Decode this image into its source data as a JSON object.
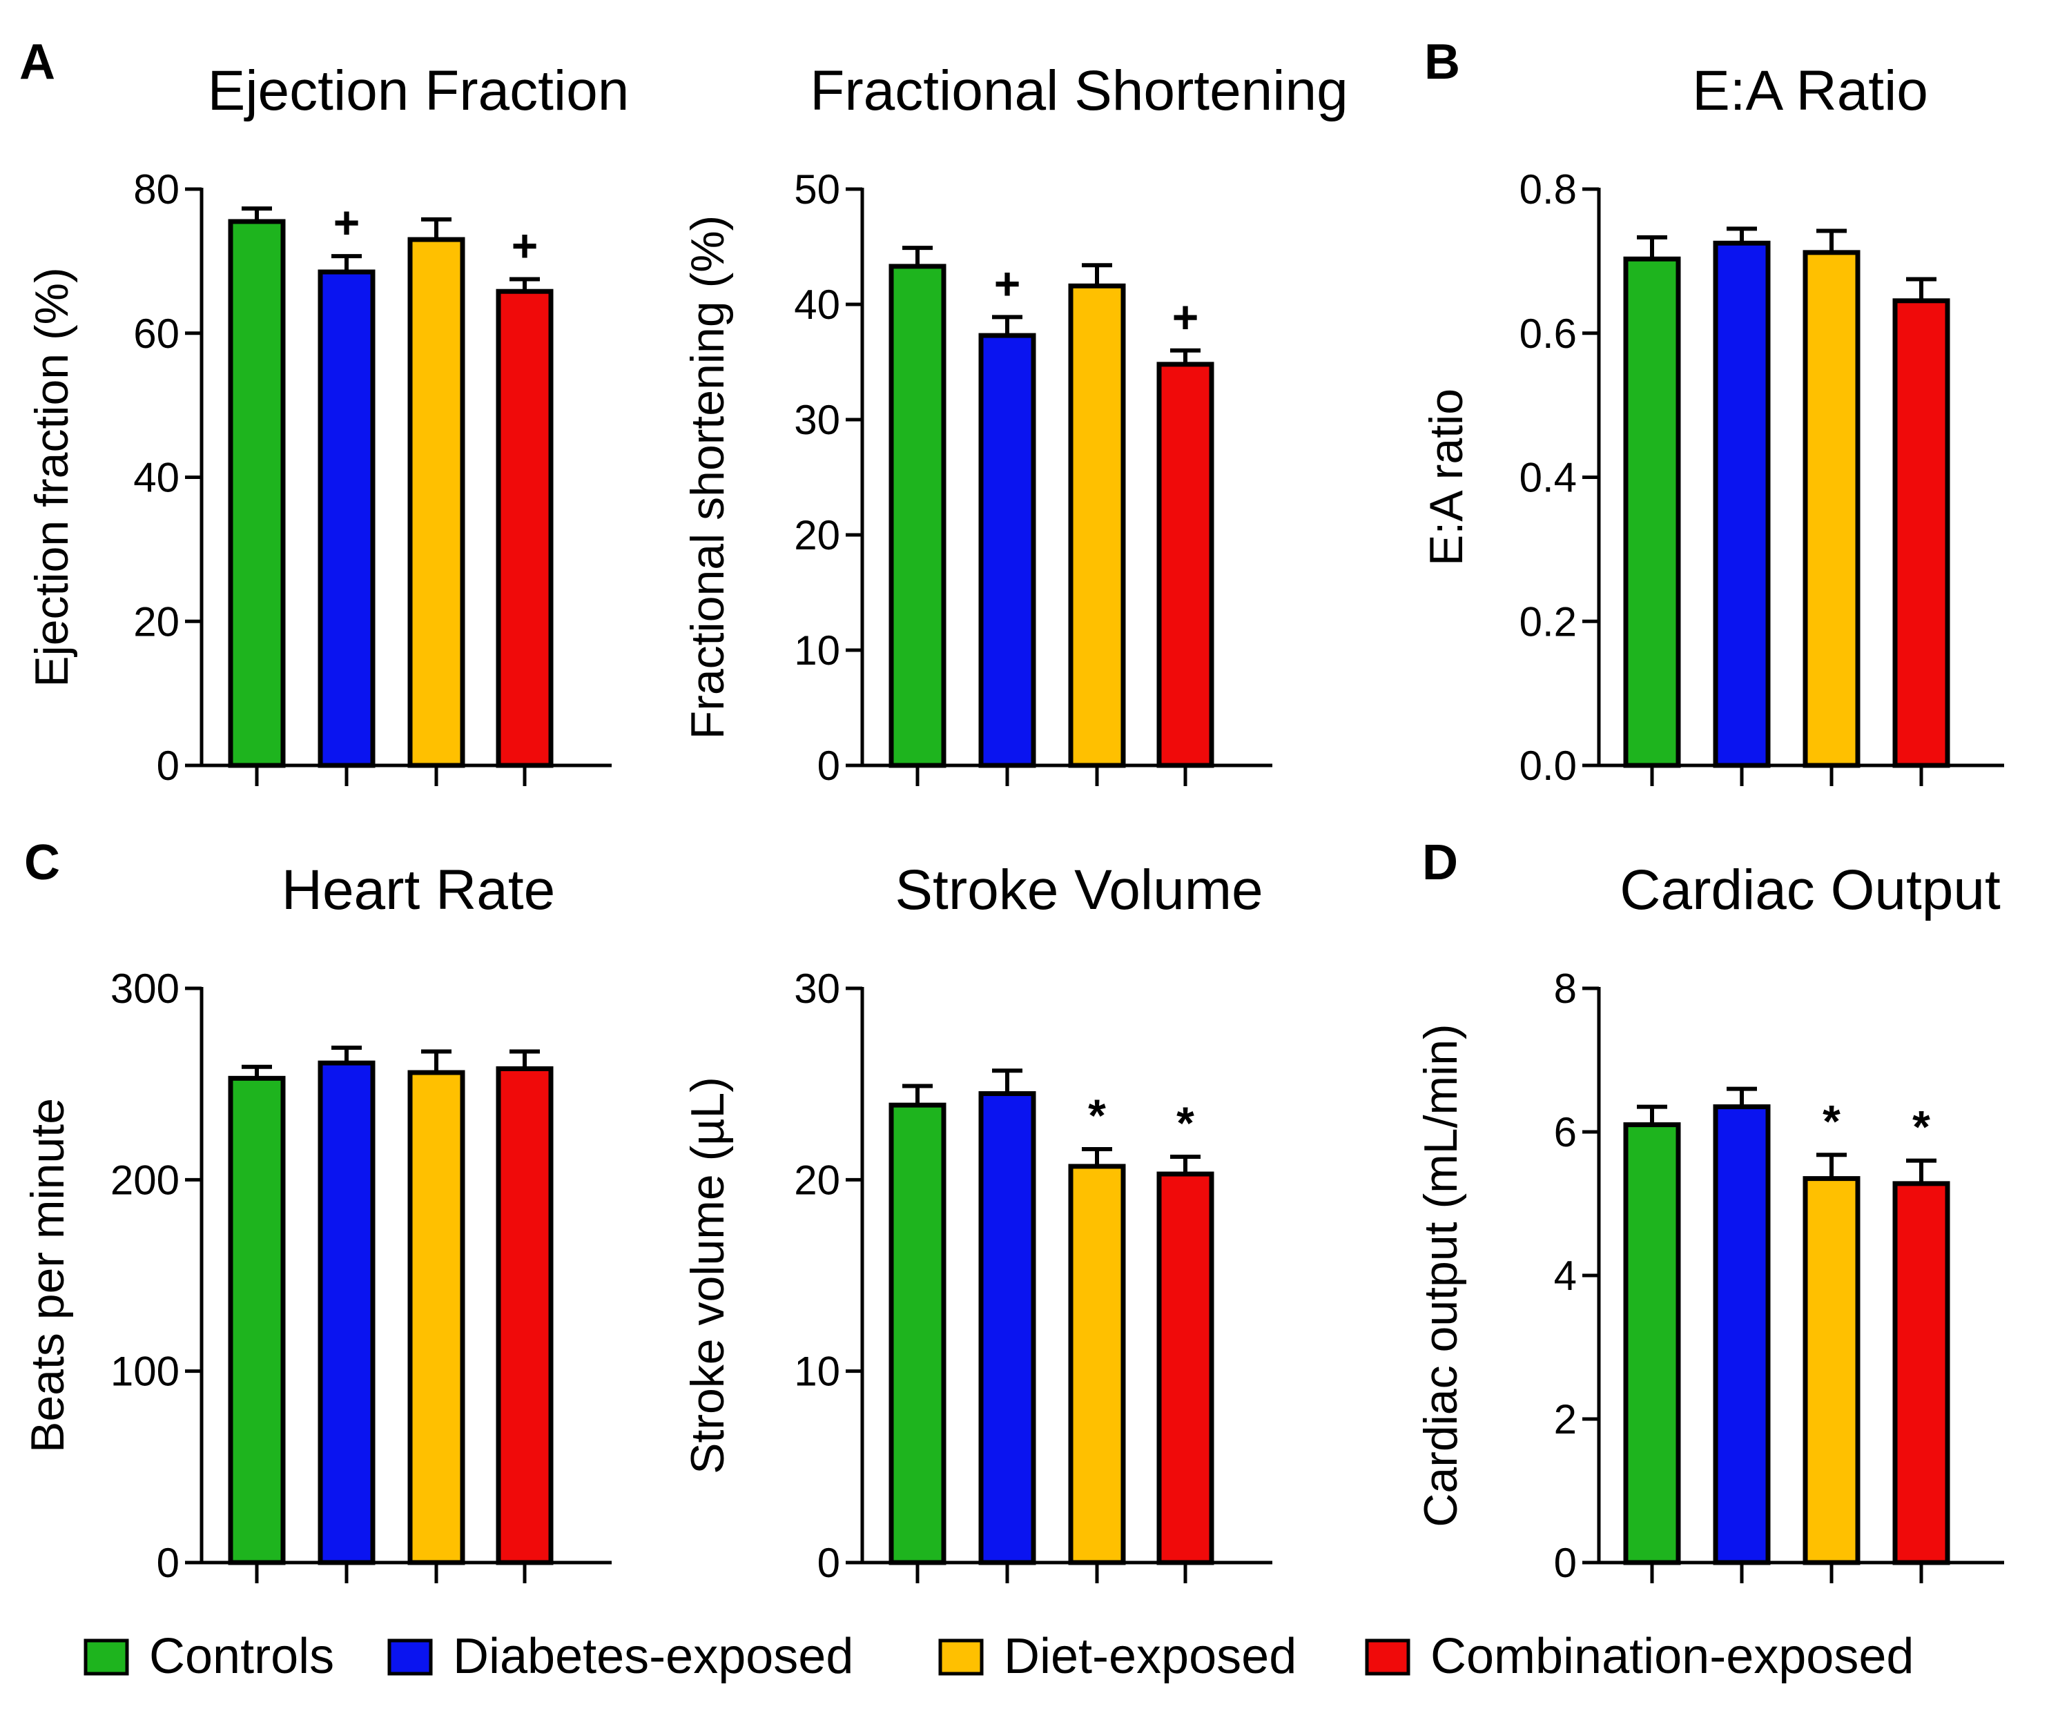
{
  "figure": {
    "legend": [
      {
        "label": "Controls",
        "color": "#1EB41E"
      },
      {
        "label": "Diabetes-exposed",
        "color": "#0A14F0"
      },
      {
        "label": "Diet-exposed",
        "color": "#FFC000"
      },
      {
        "label": "Combination-exposed",
        "color": "#F00A0A"
      }
    ]
  },
  "chart_data": [
    {
      "type": "bar",
      "panel": "A",
      "title": "Ejection Fraction",
      "xlabel": "",
      "ylabel": "Ejection fraction (%)",
      "categories": [
        "Controls",
        "Diabetes-exposed",
        "Diet-exposed",
        "Combination-exposed"
      ],
      "colors": [
        "#1EB41E",
        "#0A14F0",
        "#FFC000",
        "#F00A0A"
      ],
      "values": [
        75.5,
        68.5,
        73.0,
        65.8
      ],
      "errors": [
        1.8,
        2.2,
        2.8,
        1.7
      ],
      "annotations": [
        "",
        "+",
        "",
        "+"
      ],
      "ylim": [
        0,
        80
      ],
      "yticks": [
        0,
        20,
        40,
        60,
        80
      ],
      "ytick_labels": [
        "0",
        "20",
        "40",
        "60",
        "80"
      ]
    },
    {
      "type": "bar",
      "panel": "",
      "title": "Fractional Shortening",
      "xlabel": "",
      "ylabel": "Fractional shortening (%)",
      "categories": [
        "Controls",
        "Diabetes-exposed",
        "Diet-exposed",
        "Combination-exposed"
      ],
      "colors": [
        "#1EB41E",
        "#0A14F0",
        "#FFC000",
        "#F00A0A"
      ],
      "values": [
        43.3,
        37.3,
        41.6,
        34.8
      ],
      "errors": [
        1.6,
        1.6,
        1.8,
        1.2
      ],
      "annotations": [
        "",
        "+",
        "",
        "+"
      ],
      "ylim": [
        0,
        50
      ],
      "yticks": [
        0,
        10,
        20,
        30,
        40,
        50
      ],
      "ytick_labels": [
        "0",
        "10",
        "20",
        "30",
        "40",
        "50"
      ]
    },
    {
      "type": "bar",
      "panel": "B",
      "title": "E:A Ratio",
      "xlabel": "",
      "ylabel": "E:A ratio",
      "categories": [
        "Controls",
        "Diabetes-exposed",
        "Diet-exposed",
        "Combination-exposed"
      ],
      "colors": [
        "#1EB41E",
        "#0A14F0",
        "#FFC000",
        "#F00A0A"
      ],
      "values": [
        0.703,
        0.725,
        0.712,
        0.645
      ],
      "errors": [
        0.03,
        0.02,
        0.03,
        0.03
      ],
      "annotations": [
        "",
        "",
        "",
        ""
      ],
      "ylim": [
        0,
        0.8
      ],
      "yticks": [
        0,
        0.2,
        0.4,
        0.6,
        0.8
      ],
      "ytick_labels": [
        "0.0",
        "0.2",
        "0.4",
        "0.6",
        "0.8"
      ]
    },
    {
      "type": "bar",
      "panel": "C",
      "title": "Heart Rate",
      "xlabel": "",
      "ylabel": "Beats per minute",
      "categories": [
        "Controls",
        "Diabetes-exposed",
        "Diet-exposed",
        "Combination-exposed"
      ],
      "colors": [
        "#1EB41E",
        "#0A14F0",
        "#FFC000",
        "#F00A0A"
      ],
      "values": [
        253,
        261,
        256,
        258
      ],
      "errors": [
        6,
        8,
        11,
        9
      ],
      "annotations": [
        "",
        "",
        "",
        ""
      ],
      "ylim": [
        0,
        300
      ],
      "yticks": [
        0,
        100,
        200,
        300
      ],
      "ytick_labels": [
        "0",
        "100",
        "200",
        "300"
      ]
    },
    {
      "type": "bar",
      "panel": "",
      "title": "Stroke Volume",
      "xlabel": "",
      "ylabel": "Stroke volume (µL)",
      "categories": [
        "Controls",
        "Diabetes-exposed",
        "Diet-exposed",
        "Combination-exposed"
      ],
      "colors": [
        "#1EB41E",
        "#0A14F0",
        "#FFC000",
        "#F00A0A"
      ],
      "values": [
        23.9,
        24.5,
        20.7,
        20.3
      ],
      "errors": [
        1.0,
        1.2,
        0.9,
        0.9
      ],
      "annotations": [
        "",
        "",
        "*",
        "*"
      ],
      "ylim": [
        0,
        30
      ],
      "yticks": [
        0,
        10,
        20,
        30
      ],
      "ytick_labels": [
        "0",
        "10",
        "20",
        "30"
      ]
    },
    {
      "type": "bar",
      "panel": "D",
      "title": "Cardiac Output",
      "xlabel": "",
      "ylabel": "Cardiac output (mL/min)",
      "categories": [
        "Controls",
        "Diabetes-exposed",
        "Diet-exposed",
        "Combination-exposed"
      ],
      "colors": [
        "#1EB41E",
        "#0A14F0",
        "#FFC000",
        "#F00A0A"
      ],
      "values": [
        6.1,
        6.35,
        5.35,
        5.28
      ],
      "errors": [
        0.25,
        0.25,
        0.33,
        0.32
      ],
      "annotations": [
        "",
        "",
        "*",
        "*"
      ],
      "ylim": [
        0,
        8
      ],
      "yticks": [
        0,
        2,
        4,
        6,
        8
      ],
      "ytick_labels": [
        "0",
        "2",
        "4",
        "6",
        "8"
      ]
    }
  ]
}
